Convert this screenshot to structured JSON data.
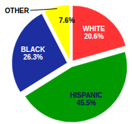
{
  "chart_data": {
    "type": "pie",
    "categories": [
      "WHITE",
      "HISPANIC",
      "BLACK",
      "OTHER"
    ],
    "values": [
      20.6,
      45.5,
      26.3,
      7.6
    ],
    "value_labels": [
      "20.6%",
      "45.5%",
      "26.3%",
      "7.6%"
    ],
    "colors": [
      "#ff3333",
      "#009a00",
      "#1c2ea0",
      "#ffff00"
    ],
    "data_labels": true
  }
}
